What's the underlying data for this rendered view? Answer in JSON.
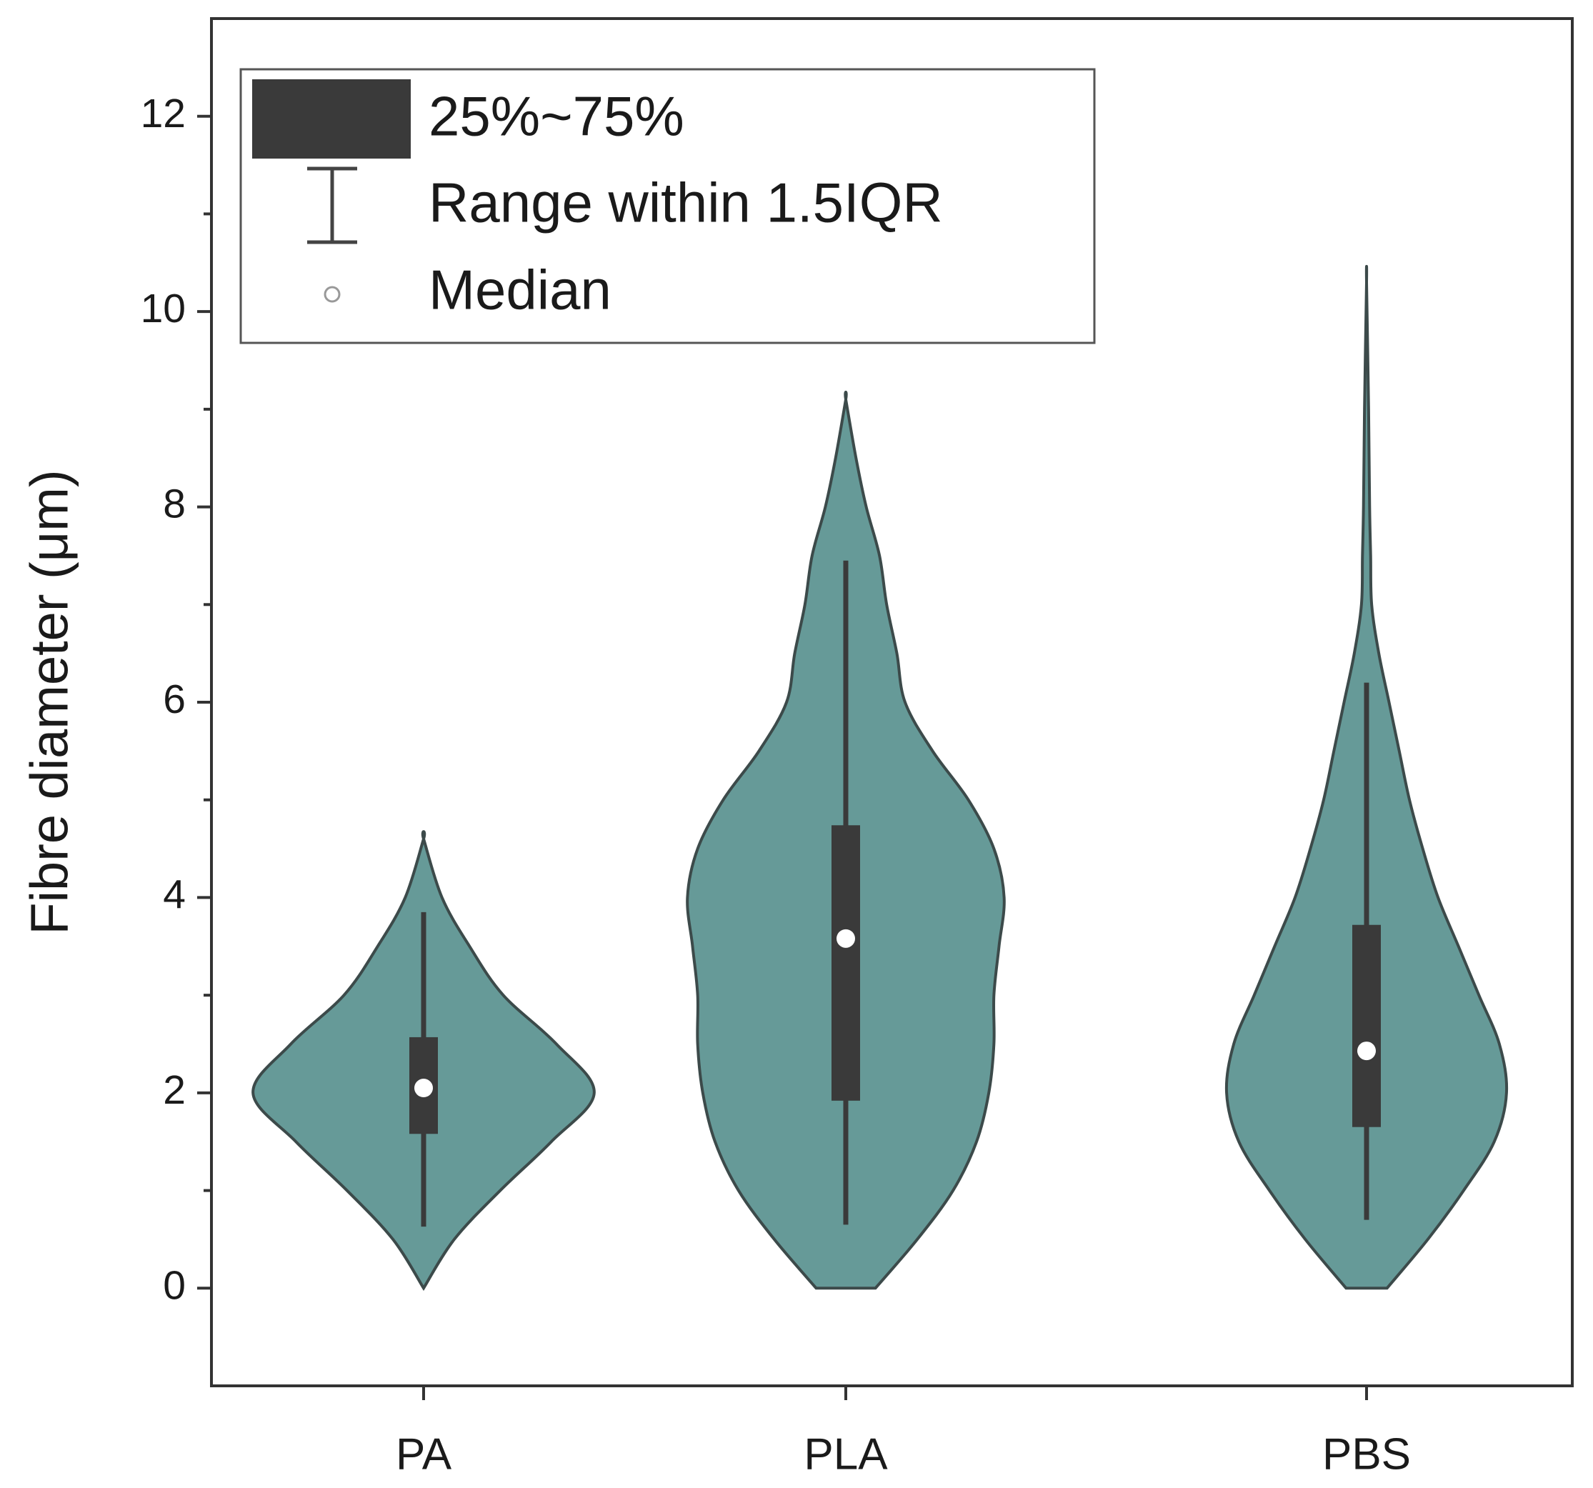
{
  "chart_data": {
    "type": "violin",
    "ylabel": "Fibre diameter (μm)",
    "categories": [
      "PA",
      "PLA",
      "PBS"
    ],
    "color": "#669a98",
    "box_color": "#3a3a3a",
    "ylim": [
      -1,
      13
    ],
    "yticks": [
      0,
      2,
      4,
      6,
      8,
      10,
      12
    ],
    "yminorticks": [
      1,
      3,
      5,
      7,
      9,
      11
    ],
    "legend": [
      "25%~75%",
      "Range within 1.5IQR",
      "Median"
    ],
    "groups": [
      {
        "whisker_low": 0.63,
        "q1": 1.58,
        "median": 2.05,
        "q3": 2.57,
        "whisker_high": 3.85,
        "y": [
          0,
          0.5,
          1,
          1.5,
          2,
          2.5,
          3,
          3.5,
          4,
          4.6
        ],
        "density": [
          0,
          0.3,
          0.75,
          1.25,
          1.67,
          1.3,
          0.78,
          0.45,
          0.18,
          0
        ]
      },
      {
        "whisker_low": 0.65,
        "q1": 1.92,
        "median": 3.58,
        "q3": 4.74,
        "whisker_high": 7.45,
        "y": [
          0,
          0.5,
          1,
          1.5,
          2,
          2.5,
          3,
          3.5,
          4,
          4.5,
          5,
          5.5,
          6,
          6.5,
          7,
          7.5,
          8,
          8.5,
          9.1
        ],
        "density": [
          0.29,
          0.7,
          1.05,
          1.28,
          1.4,
          1.45,
          1.45,
          1.5,
          1.55,
          1.45,
          1.2,
          0.85,
          0.58,
          0.5,
          0.4,
          0.33,
          0.2,
          0.1,
          0
        ]
      },
      {
        "whisker_low": 0.7,
        "q1": 1.65,
        "median": 2.43,
        "q3": 3.72,
        "whisker_high": 6.2,
        "y": [
          0,
          0.5,
          1,
          1.5,
          2,
          2.5,
          3,
          3.5,
          4,
          4.5,
          5,
          5.5,
          6,
          6.5,
          7,
          7.5,
          8,
          9,
          10.3
        ],
        "density": [
          0.2,
          0.6,
          0.95,
          1.25,
          1.37,
          1.3,
          1.1,
          0.9,
          0.7,
          0.55,
          0.42,
          0.32,
          0.22,
          0.12,
          0.05,
          0.04,
          0.03,
          0.02,
          0
        ]
      }
    ]
  }
}
